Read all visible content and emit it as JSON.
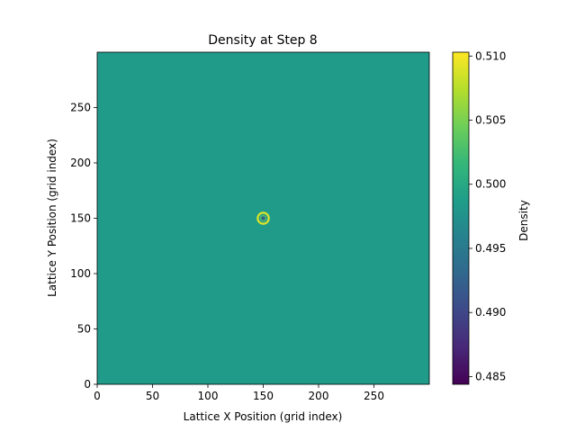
{
  "chart_data": {
    "type": "heatmap",
    "title": "Density at Step 8",
    "xlabel": "Lattice X Position (grid index)",
    "ylabel": "Lattice Y Position (grid index)",
    "xlim": [
      0,
      300
    ],
    "ylim": [
      0,
      300
    ],
    "x_ticks": [
      0,
      50,
      100,
      150,
      200,
      250
    ],
    "y_ticks": [
      0,
      50,
      100,
      150,
      200,
      250
    ],
    "grid_shape": [
      300,
      300
    ],
    "background_value": 0.4985,
    "feature": {
      "center": [
        150,
        150
      ],
      "core_value": 0.4925,
      "core_radius": 2.5,
      "ring_value": 0.509,
      "ring_radius": 5,
      "ring_width": 2
    },
    "colorbar": {
      "label": "Density",
      "colormap": "viridis",
      "range": [
        0.4844,
        0.5103
      ],
      "ticks": [
        "0.510",
        "0.505",
        "0.500",
        "0.495",
        "0.490",
        "0.485"
      ],
      "tick_values": [
        0.51,
        0.505,
        0.5,
        0.495,
        0.49,
        0.485
      ]
    }
  }
}
